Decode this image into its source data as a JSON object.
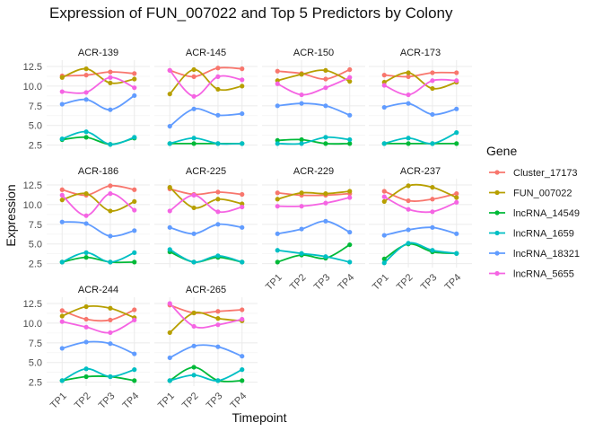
{
  "chart_data": {
    "type": "line",
    "title": "Expression of FUN_007022 and Top 5 Predictors by Colony",
    "xlabel": "Timepoint",
    "ylabel": "Expression",
    "categories": [
      "TP1",
      "TP2",
      "TP3",
      "TP4"
    ],
    "y_ticks": [
      "2.5",
      "5.0",
      "7.5",
      "10.0",
      "12.5"
    ],
    "ylim": [
      2.0,
      13.3
    ],
    "grid": true,
    "legend": {
      "title": "Gene",
      "placement": "right",
      "entries": [
        {
          "name": "Cluster_17173",
          "color": "#F8766D"
        },
        {
          "name": "FUN_007022",
          "color": "#B79F00"
        },
        {
          "name": "lncRNA_14549",
          "color": "#00BA38"
        },
        {
          "name": "lncRNA_1659",
          "color": "#00BFC4"
        },
        {
          "name": "lncRNA_18321",
          "color": "#619CFF"
        },
        {
          "name": "lncRNA_5655",
          "color": "#F564E3"
        }
      ]
    },
    "panels": [
      {
        "colony": "ACR-139",
        "series": [
          {
            "name": "Cluster_17173",
            "values": [
              11.3,
              11.4,
              11.8,
              11.6
            ]
          },
          {
            "name": "FUN_007022",
            "values": [
              11.1,
              12.2,
              10.4,
              10.9
            ]
          },
          {
            "name": "lncRNA_14549",
            "values": [
              3.2,
              3.5,
              2.6,
              3.4
            ]
          },
          {
            "name": "lncRNA_1659",
            "values": [
              3.3,
              4.2,
              2.6,
              3.5
            ]
          },
          {
            "name": "lncRNA_18321",
            "values": [
              7.7,
              8.3,
              7.0,
              8.8
            ]
          },
          {
            "name": "lncRNA_5655",
            "values": [
              9.3,
              9.2,
              11.1,
              9.8
            ]
          }
        ]
      },
      {
        "colony": "ACR-145",
        "series": [
          {
            "name": "Cluster_17173",
            "values": [
              12.0,
              11.2,
              12.3,
              12.2
            ]
          },
          {
            "name": "FUN_007022",
            "values": [
              9.0,
              12.1,
              9.6,
              10.0
            ]
          },
          {
            "name": "lncRNA_14549",
            "values": [
              2.7,
              2.7,
              2.7,
              2.7
            ]
          },
          {
            "name": "lncRNA_1659",
            "values": [
              2.7,
              3.4,
              2.7,
              2.7
            ]
          },
          {
            "name": "lncRNA_18321",
            "values": [
              4.9,
              7.1,
              6.3,
              6.5
            ]
          },
          {
            "name": "lncRNA_5655",
            "values": [
              12.0,
              8.7,
              11.2,
              10.8
            ]
          }
        ]
      },
      {
        "colony": "ACR-150",
        "series": [
          {
            "name": "Cluster_17173",
            "values": [
              11.9,
              11.6,
              10.9,
              12.1
            ]
          },
          {
            "name": "FUN_007022",
            "values": [
              10.7,
              11.5,
              12.0,
              10.6
            ]
          },
          {
            "name": "lncRNA_14549",
            "values": [
              3.1,
              3.2,
              2.7,
              2.7
            ]
          },
          {
            "name": "lncRNA_1659",
            "values": [
              2.7,
              2.7,
              3.5,
              3.2
            ]
          },
          {
            "name": "lncRNA_18321",
            "values": [
              7.5,
              7.8,
              7.5,
              6.3
            ]
          },
          {
            "name": "lncRNA_5655",
            "values": [
              10.3,
              8.9,
              9.8,
              11.1
            ]
          }
        ]
      },
      {
        "colony": "ACR-173",
        "series": [
          {
            "name": "Cluster_17173",
            "values": [
              11.4,
              11.2,
              11.7,
              11.7
            ]
          },
          {
            "name": "FUN_007022",
            "values": [
              10.5,
              11.7,
              9.7,
              10.5
            ]
          },
          {
            "name": "lncRNA_14549",
            "values": [
              2.7,
              2.7,
              2.7,
              2.7
            ]
          },
          {
            "name": "lncRNA_1659",
            "values": [
              2.7,
              3.4,
              2.7,
              4.1
            ]
          },
          {
            "name": "lncRNA_18321",
            "values": [
              7.3,
              7.8,
              6.4,
              7.1
            ]
          },
          {
            "name": "lncRNA_5655",
            "values": [
              10.1,
              8.9,
              10.7,
              10.7
            ]
          }
        ]
      },
      {
        "colony": "ACR-186",
        "series": [
          {
            "name": "Cluster_17173",
            "values": [
              11.9,
              11.2,
              12.4,
              11.9
            ]
          },
          {
            "name": "FUN_007022",
            "values": [
              10.6,
              11.4,
              9.2,
              10.4
            ]
          },
          {
            "name": "lncRNA_14549",
            "values": [
              2.7,
              3.3,
              2.7,
              2.7
            ]
          },
          {
            "name": "lncRNA_1659",
            "values": [
              2.7,
              3.9,
              2.7,
              3.9
            ]
          },
          {
            "name": "lncRNA_18321",
            "values": [
              7.8,
              7.6,
              6.0,
              6.7
            ]
          },
          {
            "name": "lncRNA_5655",
            "values": [
              11.2,
              8.6,
              11.4,
              9.3
            ]
          }
        ]
      },
      {
        "colony": "ACR-225",
        "series": [
          {
            "name": "Cluster_17173",
            "values": [
              12.0,
              11.3,
              11.6,
              11.3
            ]
          },
          {
            "name": "FUN_007022",
            "values": [
              12.2,
              9.6,
              10.7,
              10.1
            ]
          },
          {
            "name": "lncRNA_14549",
            "values": [
              4.0,
              2.7,
              3.3,
              2.7
            ]
          },
          {
            "name": "lncRNA_1659",
            "values": [
              4.3,
              2.7,
              3.5,
              2.7
            ]
          },
          {
            "name": "lncRNA_18321",
            "values": [
              7.1,
              6.3,
              7.5,
              7.1
            ]
          },
          {
            "name": "lncRNA_5655",
            "values": [
              9.2,
              11.2,
              9.1,
              9.7
            ]
          }
        ]
      },
      {
        "colony": "ACR-229",
        "series": [
          {
            "name": "Cluster_17173",
            "values": [
              11.5,
              11.2,
              11.2,
              11.4
            ]
          },
          {
            "name": "FUN_007022",
            "values": [
              10.7,
              11.5,
              11.4,
              11.7
            ]
          },
          {
            "name": "lncRNA_14549",
            "values": [
              2.7,
              3.6,
              3.2,
              4.9
            ]
          },
          {
            "name": "lncRNA_1659",
            "values": [
              4.2,
              3.8,
              3.4,
              2.7
            ]
          },
          {
            "name": "lncRNA_18321",
            "values": [
              6.3,
              6.9,
              7.9,
              6.5
            ]
          },
          {
            "name": "lncRNA_5655",
            "values": [
              9.8,
              9.8,
              10.2,
              10.9
            ]
          }
        ]
      },
      {
        "colony": "ACR-237",
        "series": [
          {
            "name": "Cluster_17173",
            "values": [
              11.7,
              10.5,
              10.7,
              11.4
            ]
          },
          {
            "name": "FUN_007022",
            "values": [
              10.4,
              12.4,
              12.2,
              10.9
            ]
          },
          {
            "name": "lncRNA_14549",
            "values": [
              3.1,
              5.0,
              4.0,
              3.8
            ]
          },
          {
            "name": "lncRNA_1659",
            "values": [
              2.6,
              5.1,
              4.2,
              3.8
            ]
          },
          {
            "name": "lncRNA_18321",
            "values": [
              6.1,
              6.8,
              7.1,
              6.3
            ]
          },
          {
            "name": "lncRNA_5655",
            "values": [
              11.0,
              9.4,
              9.1,
              10.3
            ]
          }
        ]
      },
      {
        "colony": "ACR-244",
        "series": [
          {
            "name": "Cluster_17173",
            "values": [
              11.6,
              10.5,
              10.4,
              11.7
            ]
          },
          {
            "name": "FUN_007022",
            "values": [
              10.9,
              12.1,
              11.9,
              10.7
            ]
          },
          {
            "name": "lncRNA_14549",
            "values": [
              2.7,
              3.2,
              3.2,
              2.7
            ]
          },
          {
            "name": "lncRNA_1659",
            "values": [
              2.7,
              4.2,
              3.2,
              4.1
            ]
          },
          {
            "name": "lncRNA_18321",
            "values": [
              6.8,
              7.6,
              7.4,
              6.1
            ]
          },
          {
            "name": "lncRNA_5655",
            "values": [
              10.2,
              9.5,
              8.8,
              10.4
            ]
          }
        ]
      },
      {
        "colony": "ACR-265",
        "series": [
          {
            "name": "Cluster_17173",
            "values": [
              12.3,
              11.3,
              11.5,
              11.7
            ]
          },
          {
            "name": "FUN_007022",
            "values": [
              8.8,
              11.3,
              10.6,
              10.3
            ]
          },
          {
            "name": "lncRNA_14549",
            "values": [
              2.7,
              4.4,
              2.7,
              2.7
            ]
          },
          {
            "name": "lncRNA_1659",
            "values": [
              2.7,
              3.4,
              2.7,
              4.1
            ]
          },
          {
            "name": "lncRNA_18321",
            "values": [
              5.6,
              7.1,
              7.0,
              5.8
            ]
          },
          {
            "name": "lncRNA_5655",
            "values": [
              12.5,
              9.6,
              9.8,
              10.5
            ]
          }
        ]
      }
    ]
  }
}
